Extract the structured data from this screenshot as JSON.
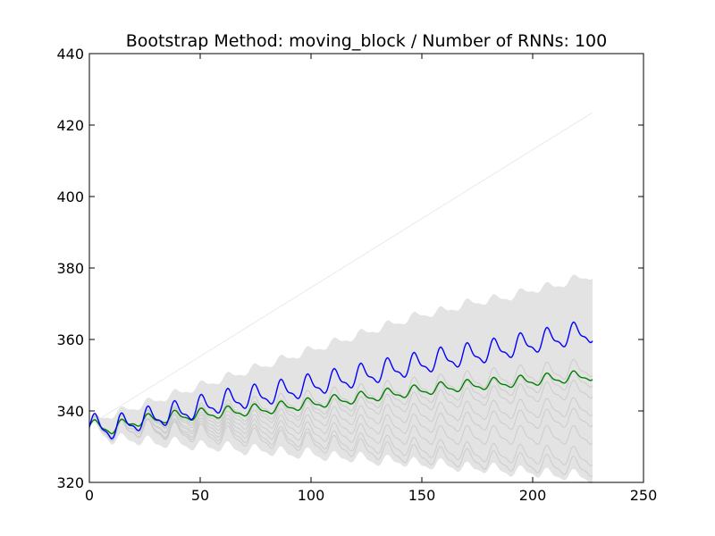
{
  "chart_data": {
    "type": "line",
    "title": "Bootstrap Method: moving_block / Number of RNNs: 100",
    "xlabel": "",
    "ylabel": "",
    "xlim": [
      0,
      250
    ],
    "ylim": [
      320,
      440
    ],
    "xticks": [
      0,
      50,
      100,
      150,
      200,
      250
    ],
    "yticks": [
      320,
      340,
      360,
      380,
      400,
      420,
      440
    ],
    "grid": false,
    "legend": "none",
    "seasonal_period": 12,
    "band": {
      "x": [
        0,
        10,
        20,
        30,
        40,
        50,
        60,
        70,
        80,
        90,
        100,
        110,
        120,
        130,
        140,
        150,
        160,
        170,
        180,
        190,
        200,
        210,
        220,
        227
      ],
      "upper": [
        337,
        339,
        341,
        343,
        345,
        347,
        349,
        351,
        353,
        355,
        357,
        359,
        361,
        363,
        365,
        367,
        368,
        370,
        371,
        372,
        374,
        375,
        377,
        378
      ],
      "lower": [
        336,
        332,
        332,
        331,
        331,
        330,
        330,
        329,
        329,
        328,
        328,
        327,
        327,
        326,
        326,
        325,
        325,
        324,
        324,
        323,
        323,
        322,
        322,
        321
      ]
    },
    "series": [
      {
        "color": "#e6e6e6",
        "x": [
          0,
          227
        ],
        "y": [
          336,
          423.5
        ],
        "amplitude": 0
      },
      {
        "color": "#0000ff",
        "x": [
          0,
          10,
          20,
          40,
          60,
          80,
          100,
          120,
          140,
          160,
          180,
          200,
          220,
          227
        ],
        "y": [
          336,
          335,
          337,
          339.5,
          342.5,
          344.5,
          347,
          349.5,
          352,
          354.5,
          356.5,
          359,
          361.5,
          362
        ],
        "amplitude": 3
      },
      {
        "color": "#008000",
        "x": [
          0,
          10,
          20,
          40,
          60,
          80,
          100,
          120,
          140,
          160,
          180,
          200,
          220,
          227
        ],
        "y": [
          336,
          335,
          337,
          338.5,
          339.5,
          340.5,
          342,
          343.5,
          345,
          346.5,
          347.5,
          348.5,
          349.5,
          350
        ],
        "amplitude": 1.5
      },
      {
        "color": "#c8c8c8",
        "x": [
          0,
          10,
          20,
          60,
          100,
          140,
          180,
          227
        ],
        "y": [
          336,
          335,
          337,
          340,
          343,
          346,
          349,
          352
        ],
        "amplitude": 2.5
      },
      {
        "color": "#c8c8c8",
        "x": [
          0,
          10,
          20,
          60,
          100,
          140,
          180,
          227
        ],
        "y": [
          336,
          335,
          337,
          339,
          341,
          344,
          346,
          349
        ],
        "amplitude": 2.5
      },
      {
        "color": "#c8c8c8",
        "x": [
          0,
          10,
          20,
          60,
          100,
          140,
          180,
          227
        ],
        "y": [
          336,
          335,
          337,
          338,
          340,
          342,
          344,
          346
        ],
        "amplitude": 2.5
      },
      {
        "color": "#c8c8c8",
        "x": [
          0,
          10,
          20,
          60,
          100,
          140,
          180,
          227
        ],
        "y": [
          336,
          334,
          336,
          337,
          338,
          339,
          340,
          341
        ],
        "amplitude": 2.5
      },
      {
        "color": "#c8c8c8",
        "x": [
          0,
          10,
          20,
          60,
          100,
          140,
          180,
          227
        ],
        "y": [
          336,
          334,
          336,
          336,
          336,
          336,
          337,
          338
        ],
        "amplitude": 2.5
      },
      {
        "color": "#c8c8c8",
        "x": [
          0,
          10,
          20,
          60,
          100,
          140,
          180,
          227
        ],
        "y": [
          336,
          334,
          335,
          335,
          334,
          333,
          333,
          333
        ],
        "amplitude": 2.5
      },
      {
        "color": "#c8c8c8",
        "x": [
          0,
          10,
          20,
          60,
          100,
          140,
          180,
          227
        ],
        "y": [
          336,
          334,
          335,
          334,
          332,
          330,
          328,
          327
        ],
        "amplitude": 2.5
      },
      {
        "color": "#c8c8c8",
        "x": [
          0,
          10,
          20,
          60,
          100,
          140,
          180,
          227
        ],
        "y": [
          336,
          334,
          335,
          333,
          331,
          328,
          326,
          324
        ],
        "amplitude": 2.5
      }
    ]
  }
}
